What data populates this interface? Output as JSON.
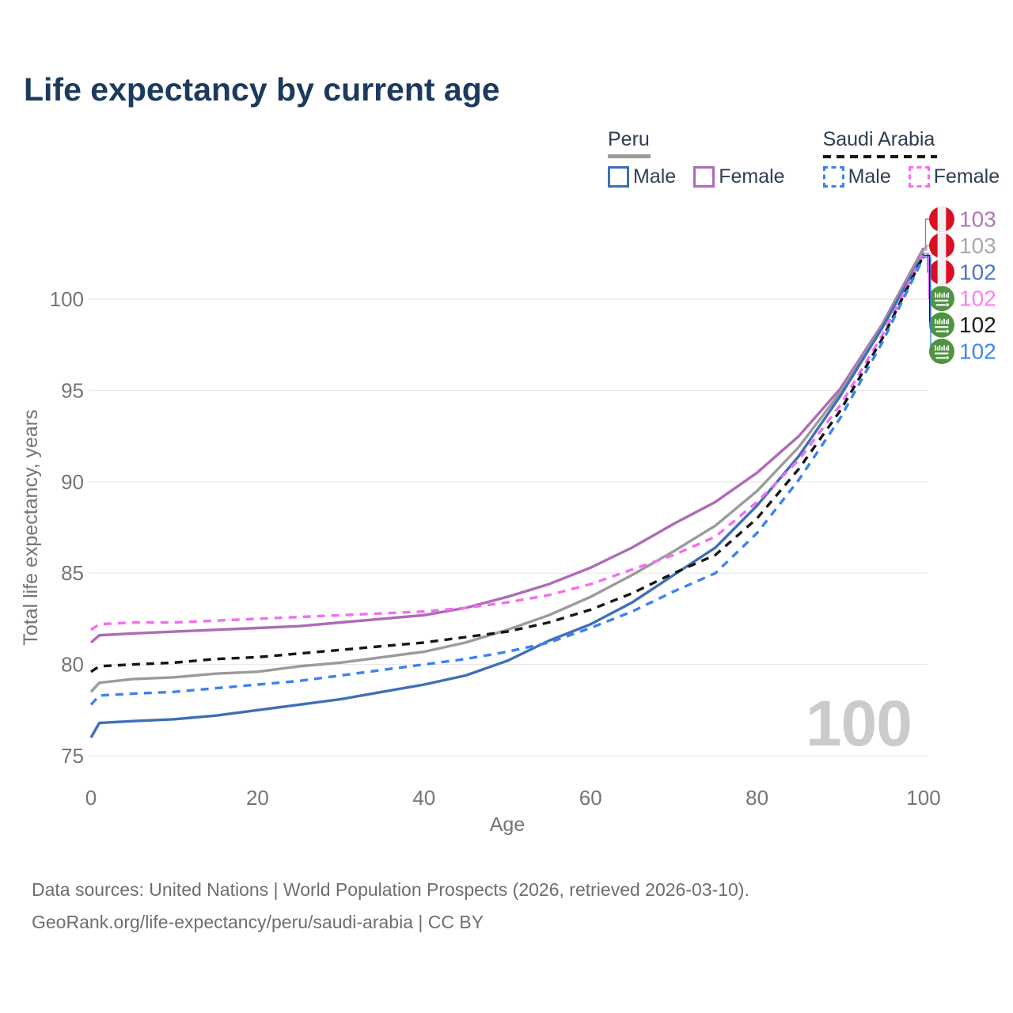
{
  "title": "Life expectancy by current age",
  "legend": {
    "groups": [
      {
        "name": "Peru",
        "dash": false,
        "underline_color": "#9b9b9b",
        "items": [
          {
            "label": "Male",
            "color": "#3e6fb7",
            "dash": false
          },
          {
            "label": "Female",
            "color": "#ad6cb5",
            "dash": false
          }
        ]
      },
      {
        "name": "Saudi Arabia",
        "dash": true,
        "underline_color": "#161616",
        "items": [
          {
            "label": "Male",
            "color": "#3d82f0",
            "dash": true
          },
          {
            "label": "Female",
            "color": "#f36ef0",
            "dash": true
          }
        ]
      }
    ]
  },
  "chart_data": {
    "type": "line",
    "title": "Life expectancy by current age",
    "xlabel": "Age",
    "ylabel": "Total life expectancy, years",
    "xlim": [
      0,
      100
    ],
    "ylim": [
      75,
      103
    ],
    "x_ticks": [
      0,
      20,
      40,
      60,
      80,
      100
    ],
    "y_ticks": [
      75,
      80,
      85,
      90,
      95,
      100
    ],
    "grid": "horizontal",
    "x": [
      0,
      1,
      5,
      10,
      15,
      20,
      25,
      30,
      35,
      40,
      45,
      50,
      55,
      60,
      65,
      70,
      75,
      80,
      85,
      90,
      95,
      100
    ],
    "series": [
      {
        "id": "peru-female",
        "name": "Peru Female",
        "country": "Peru",
        "flag": "peru",
        "color": "#ad6cb5",
        "dash": false,
        "end_label": "103",
        "label_color": "#b474b9",
        "values": [
          81.2,
          81.6,
          81.7,
          81.8,
          81.9,
          82.0,
          82.1,
          82.3,
          82.5,
          82.7,
          83.1,
          83.7,
          84.4,
          85.3,
          86.4,
          87.7,
          88.9,
          90.5,
          92.5,
          95.1,
          98.6,
          102.8
        ]
      },
      {
        "id": "peru-both",
        "name": "Peru",
        "country": "Peru",
        "flag": "peru",
        "color": "#9b9b9b",
        "dash": false,
        "end_label": "103",
        "label_color": "#a9a9a9",
        "values": [
          78.5,
          79.0,
          79.2,
          79.3,
          79.5,
          79.6,
          79.9,
          80.1,
          80.4,
          80.7,
          81.2,
          81.9,
          82.7,
          83.7,
          84.9,
          86.2,
          87.6,
          89.5,
          91.9,
          94.9,
          98.5,
          102.7
        ]
      },
      {
        "id": "peru-male",
        "name": "Peru Male",
        "country": "Peru",
        "flag": "peru",
        "color": "#3e6fb7",
        "dash": false,
        "end_label": "102",
        "label_color": "#4a76c2",
        "values": [
          76.0,
          76.8,
          76.9,
          77.0,
          77.2,
          77.5,
          77.8,
          78.1,
          78.5,
          78.9,
          79.4,
          80.2,
          81.3,
          82.2,
          83.4,
          84.9,
          86.4,
          88.7,
          91.4,
          94.7,
          98.4,
          102.5
        ]
      },
      {
        "id": "saudi-female",
        "name": "Saudi Arabia Female",
        "country": "Saudi Arabia",
        "flag": "saudi",
        "color": "#f36ef0",
        "dash": true,
        "end_label": "102",
        "label_color": "#fc7ef2",
        "values": [
          81.9,
          82.2,
          82.3,
          82.3,
          82.4,
          82.5,
          82.6,
          82.7,
          82.8,
          82.9,
          83.1,
          83.4,
          83.8,
          84.4,
          85.2,
          86.0,
          87.0,
          88.9,
          91.2,
          94.2,
          98.0,
          102.5
        ]
      },
      {
        "id": "saudi-both",
        "name": "Saudi Arabia",
        "country": "Saudi Arabia",
        "flag": "saudi",
        "color": "#161616",
        "dash": true,
        "end_label": "102",
        "label_color": "#1b1b1b",
        "values": [
          79.6,
          79.9,
          80.0,
          80.1,
          80.3,
          80.4,
          80.6,
          80.8,
          81.0,
          81.2,
          81.5,
          81.8,
          82.3,
          83.0,
          83.9,
          85.0,
          86.0,
          88.0,
          90.7,
          93.9,
          97.8,
          102.4
        ]
      },
      {
        "id": "saudi-male",
        "name": "Saudi Arabia Male",
        "country": "Saudi Arabia",
        "flag": "saudi",
        "color": "#3d82f0",
        "dash": true,
        "end_label": "102",
        "label_color": "#3e86f2",
        "values": [
          77.8,
          78.3,
          78.4,
          78.5,
          78.7,
          78.9,
          79.1,
          79.4,
          79.7,
          80.0,
          80.3,
          80.7,
          81.2,
          82.0,
          82.9,
          84.0,
          85.0,
          87.2,
          90.1,
          93.5,
          97.6,
          102.3
        ]
      }
    ],
    "legend_position": "top-right",
    "flag_colors": {
      "peru_red": "#d91023",
      "peru_white": "#f0f0f0",
      "saudi_green": "#4f9440"
    }
  },
  "watermark": "100",
  "footer": {
    "line1": "Data sources: United Nations | World Population Prospects (2026, retrieved 2026-03-10).",
    "line2": "GeoRank.org/life-expectancy/peru/saudi-arabia | CC BY"
  }
}
